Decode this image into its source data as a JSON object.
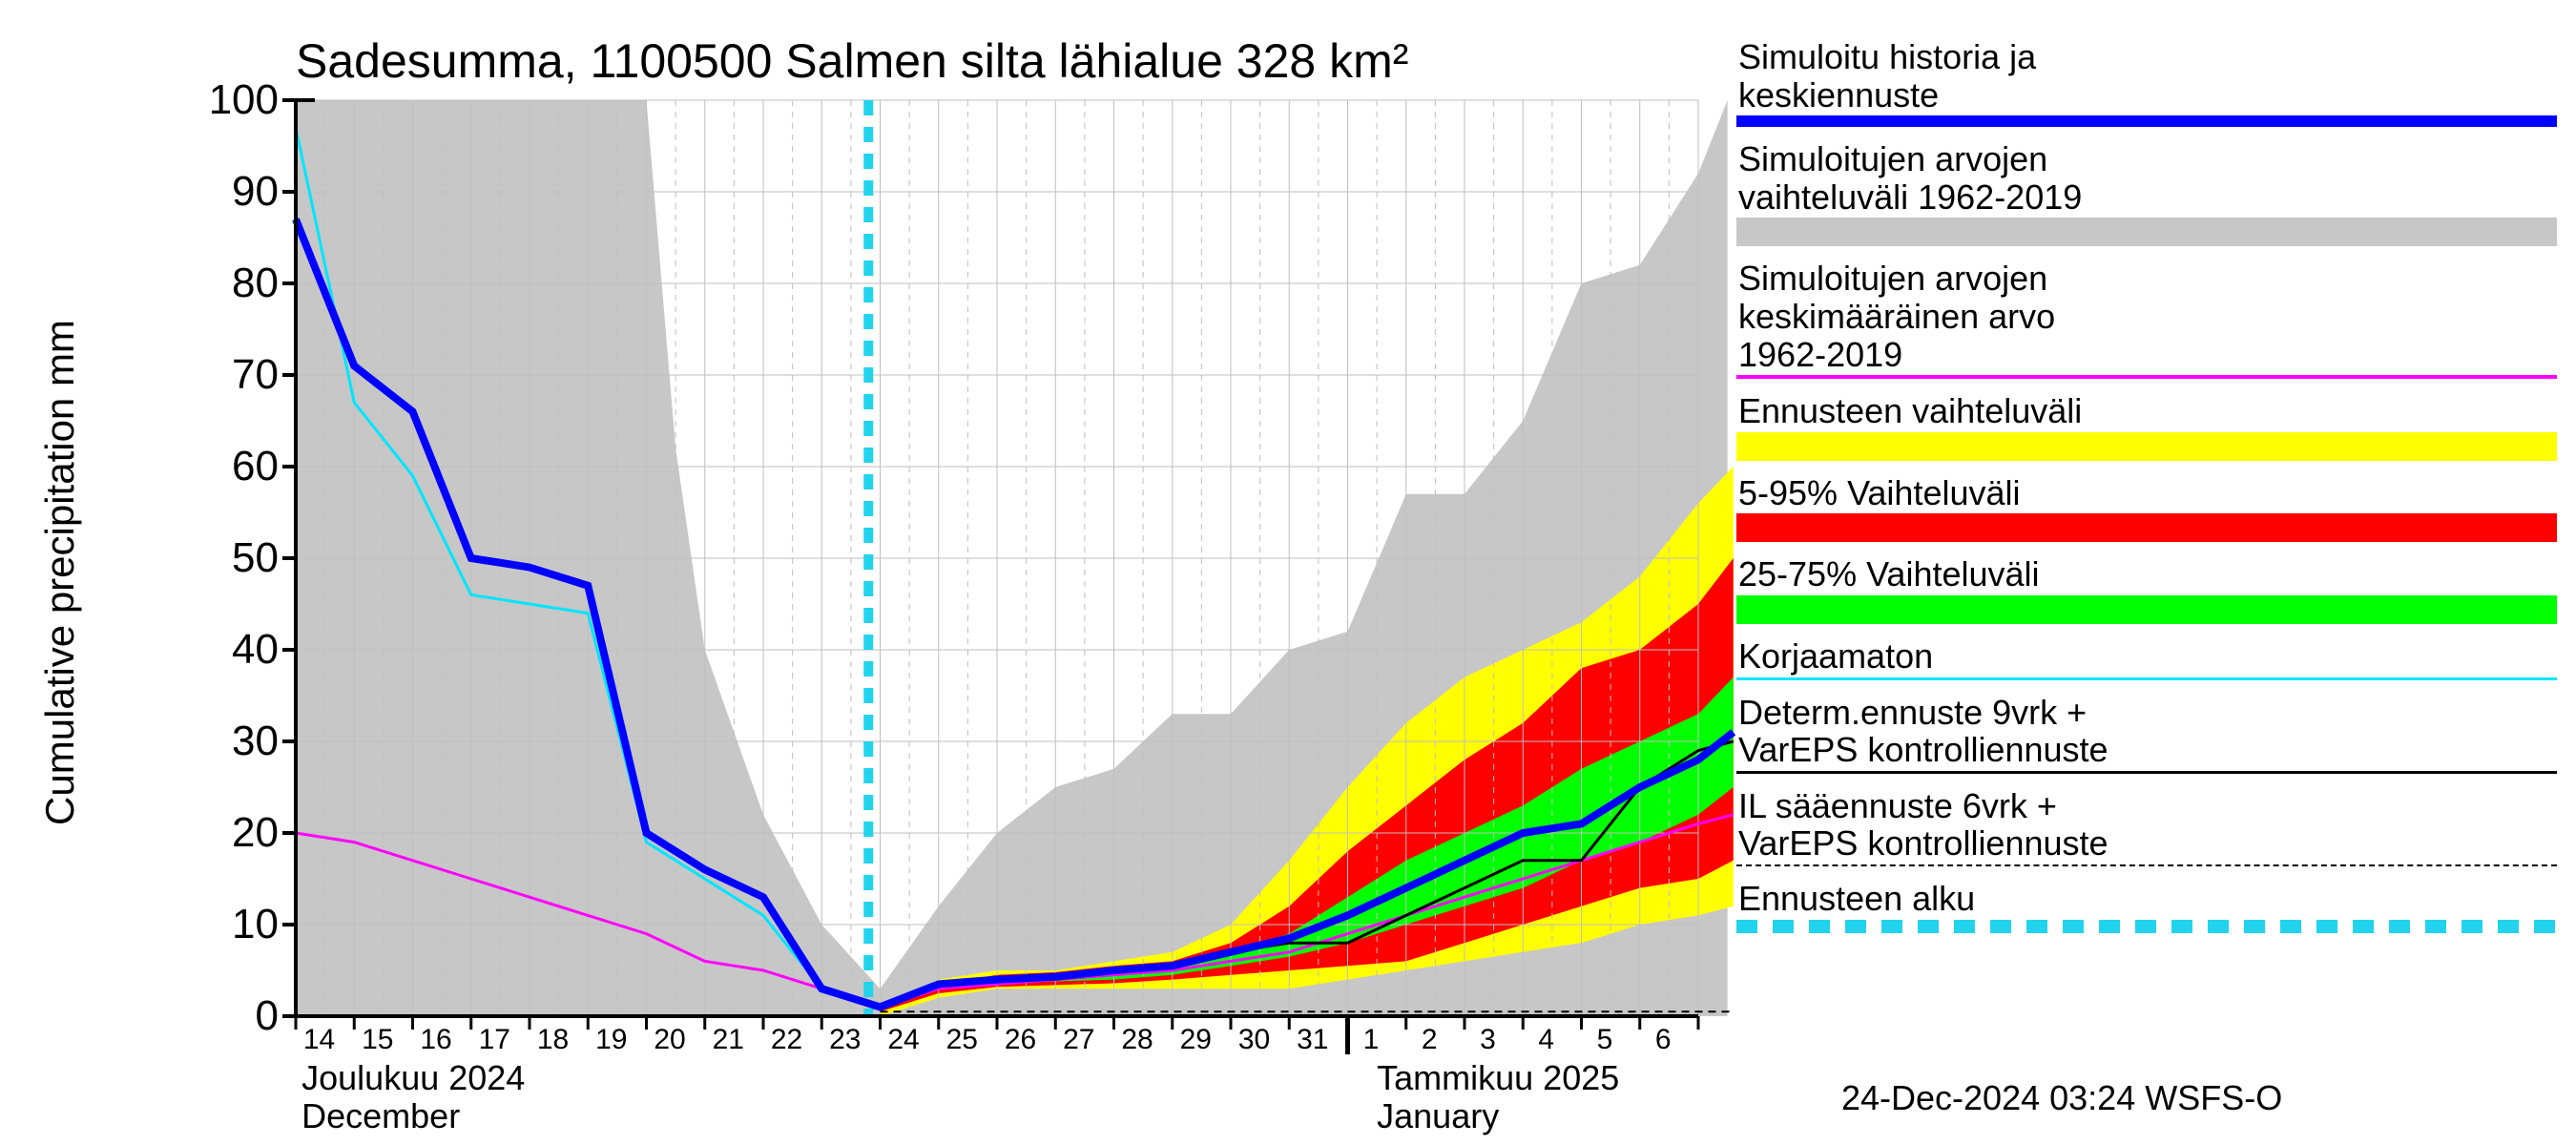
{
  "chart": {
    "type": "line-band",
    "title": "Sadesumma, 1100500 Salmen silta lähialue 328 km²",
    "y_axis_label": "Cumulative precipitation   mm",
    "background_color": "#ffffff",
    "grid_color": "#bfbfbf",
    "axis_color": "#000000",
    "title_fontsize": 50,
    "ylabel_fontsize": 42,
    "tick_fontsize": 44,
    "xtick_fontsize": 30,
    "ylim": [
      0,
      100
    ],
    "yticks": [
      0,
      10,
      20,
      30,
      40,
      50,
      60,
      70,
      80,
      90,
      100
    ],
    "x_days": [
      "14",
      "15",
      "16",
      "17",
      "18",
      "19",
      "20",
      "21",
      "22",
      "23",
      "24",
      "25",
      "26",
      "27",
      "28",
      "29",
      "30",
      "31",
      "1",
      "2",
      "3",
      "4",
      "5",
      "6",
      ""
    ],
    "month_labels": [
      {
        "line1": "Joulukuu  2024",
        "line2": "December",
        "at_index": 0.1
      },
      {
        "line1": "Tammikuu  2025",
        "line2": "January",
        "at_index": 18.5
      }
    ],
    "month_boundary_index": 18,
    "today_line_index": 9.8,
    "today_line_color": "#22d3ee",
    "grey_band": {
      "color": "#c7c7c7",
      "upper": [
        100,
        100,
        100,
        100,
        100,
        100,
        100,
        62,
        40,
        22,
        10,
        3,
        12,
        20,
        25,
        27,
        33,
        33,
        40,
        42,
        57,
        57,
        65,
        80,
        82,
        92,
        100
      ],
      "lower": [
        0,
        0,
        0,
        0,
        0,
        0,
        0,
        0,
        0,
        0,
        0,
        0,
        0,
        0,
        0,
        0,
        0,
        0,
        0,
        0,
        0,
        0,
        0,
        0,
        0,
        0,
        0
      ],
      "x_indices": [
        0,
        1,
        2,
        3,
        4,
        5,
        6,
        6.5,
        7,
        8,
        9,
        10,
        11,
        12,
        13,
        14,
        15,
        16,
        17,
        18,
        19,
        20,
        21,
        22,
        23,
        24,
        24.5
      ]
    },
    "yellow_band": {
      "color": "#ffff00",
      "upper": [
        1,
        4,
        5,
        5,
        6,
        7,
        10,
        17,
        25,
        32,
        37,
        40,
        43,
        48,
        56,
        60
      ],
      "lower": [
        0,
        2,
        3,
        3,
        3,
        3,
        3,
        3,
        4,
        5,
        6,
        7,
        8,
        10,
        11,
        12
      ],
      "x_indices": [
        10,
        11,
        12,
        13,
        14,
        15,
        16,
        17,
        18,
        19,
        20,
        21,
        22,
        23,
        24,
        24.6
      ]
    },
    "red_band": {
      "color": "#ff0000",
      "upper": [
        1,
        3.5,
        4.5,
        4.8,
        5.5,
        6,
        8,
        12,
        18,
        23,
        28,
        32,
        38,
        40,
        45,
        50
      ],
      "lower": [
        0.5,
        2.5,
        3.2,
        3.4,
        3.6,
        4,
        4.5,
        5,
        5.5,
        6,
        8,
        10,
        12,
        14,
        15,
        17
      ],
      "x_indices": [
        10,
        11,
        12,
        13,
        14,
        15,
        16,
        17,
        18,
        19,
        20,
        21,
        22,
        23,
        24,
        24.6
      ]
    },
    "green_band": {
      "color": "#00ff00",
      "upper": [
        1,
        3.2,
        4.2,
        4.5,
        5,
        5.5,
        7,
        9,
        13,
        17,
        20,
        23,
        27,
        30,
        33,
        37
      ],
      "lower": [
        0.7,
        3,
        3.6,
        3.8,
        4,
        4.5,
        5.5,
        6.5,
        8,
        10,
        12,
        14,
        17,
        19,
        22,
        25
      ],
      "x_indices": [
        10,
        11,
        12,
        13,
        14,
        15,
        16,
        17,
        18,
        19,
        20,
        21,
        22,
        23,
        24,
        24.6
      ]
    },
    "magenta_line": {
      "color": "#ff00ff",
      "width": 3,
      "x_indices": [
        0,
        1,
        2,
        3,
        4,
        5,
        6,
        7,
        8,
        9,
        10,
        11,
        12,
        13,
        14,
        15,
        16,
        17,
        18,
        19,
        20,
        21,
        22,
        23,
        24,
        24.6
      ],
      "values": [
        20,
        19,
        17,
        15,
        13,
        11,
        9,
        6,
        5,
        3,
        1,
        3,
        3.5,
        4,
        4.5,
        5,
        6,
        7,
        9,
        11,
        13,
        15,
        17,
        19,
        21,
        22
      ]
    },
    "cyan_line": {
      "color": "#00e5ff",
      "width": 3,
      "x_indices": [
        0,
        1,
        2,
        3,
        4,
        5,
        6,
        7,
        8,
        9,
        10
      ],
      "values": [
        97,
        67,
        59,
        46,
        45,
        44,
        19,
        15,
        11,
        3,
        1
      ]
    },
    "blue_line": {
      "color": "#0000ff",
      "width": 8,
      "x_indices": [
        0,
        1,
        2,
        3,
        4,
        5,
        6,
        7,
        8,
        9,
        10,
        11,
        12,
        13,
        14,
        15,
        16,
        17,
        18,
        19,
        20,
        21,
        22,
        23,
        24,
        24.6
      ],
      "values": [
        87,
        71,
        66,
        50,
        49,
        47,
        20,
        16,
        13,
        3,
        1,
        3.5,
        4,
        4.3,
        5,
        5.5,
        7,
        8.5,
        11,
        14,
        17,
        20,
        21,
        25,
        28,
        31
      ]
    },
    "black_solid_line": {
      "color": "#000000",
      "width": 3,
      "x_indices": [
        10,
        11,
        12,
        13,
        14,
        15,
        16,
        17,
        18,
        19,
        20,
        21,
        22,
        23,
        24,
        24.6
      ],
      "values": [
        1,
        3.5,
        4,
        4.3,
        5,
        5.5,
        7,
        8,
        8,
        11,
        14,
        17,
        17,
        25,
        29,
        30
      ]
    },
    "black_dashed_line": {
      "color": "#000000",
      "width": 2,
      "dash": "8,6",
      "x_indices": [
        10,
        11,
        12,
        13,
        14,
        15,
        16,
        17,
        18,
        19,
        20,
        21,
        22,
        23,
        24,
        24.6
      ],
      "values": [
        0.5,
        0.5,
        0.5,
        0.5,
        0.5,
        0.5,
        0.5,
        0.5,
        0.5,
        0.5,
        0.5,
        0.5,
        0.5,
        0.5,
        0.5,
        0.5
      ]
    }
  },
  "legend": {
    "items": [
      {
        "lines": [
          "Simuloitu historia ja",
          "keskiennuste"
        ],
        "swatch_type": "line",
        "color": "#0000ff",
        "width": 12
      },
      {
        "lines": [
          "Simuloitujen arvojen",
          "vaihteluväli 1962-2019"
        ],
        "swatch_type": "block",
        "color": "#c7c7c7"
      },
      {
        "lines": [
          "Simuloitujen arvojen",
          "keskimääräinen arvo",
          " 1962-2019"
        ],
        "swatch_type": "line",
        "color": "#ff00ff",
        "width": 4
      },
      {
        "lines": [
          "Ennusteen vaihteluväli"
        ],
        "swatch_type": "block",
        "color": "#ffff00"
      },
      {
        "lines": [
          "5-95% Vaihteluväli"
        ],
        "swatch_type": "block",
        "color": "#ff0000"
      },
      {
        "lines": [
          "25-75% Vaihteluväli"
        ],
        "swatch_type": "block",
        "color": "#00ff00"
      },
      {
        "lines": [
          "Korjaamaton"
        ],
        "swatch_type": "line",
        "color": "#00e5ff",
        "width": 3
      },
      {
        "lines": [
          "Determ.ennuste 9vrk +",
          "VarEPS kontrolliennuste"
        ],
        "swatch_type": "line",
        "color": "#000000",
        "width": 3
      },
      {
        "lines": [
          "IL sääennuste 6vrk  +",
          " VarEPS kontrolliennuste"
        ],
        "swatch_type": "dashed",
        "color": "#000000",
        "width": 2
      },
      {
        "lines": [
          "Ennusteen alku"
        ],
        "swatch_type": "thick-dashed",
        "color": "#22d3ee",
        "width": 14
      }
    ]
  },
  "timestamp": "24-Dec-2024 03:24 WSFS-O"
}
